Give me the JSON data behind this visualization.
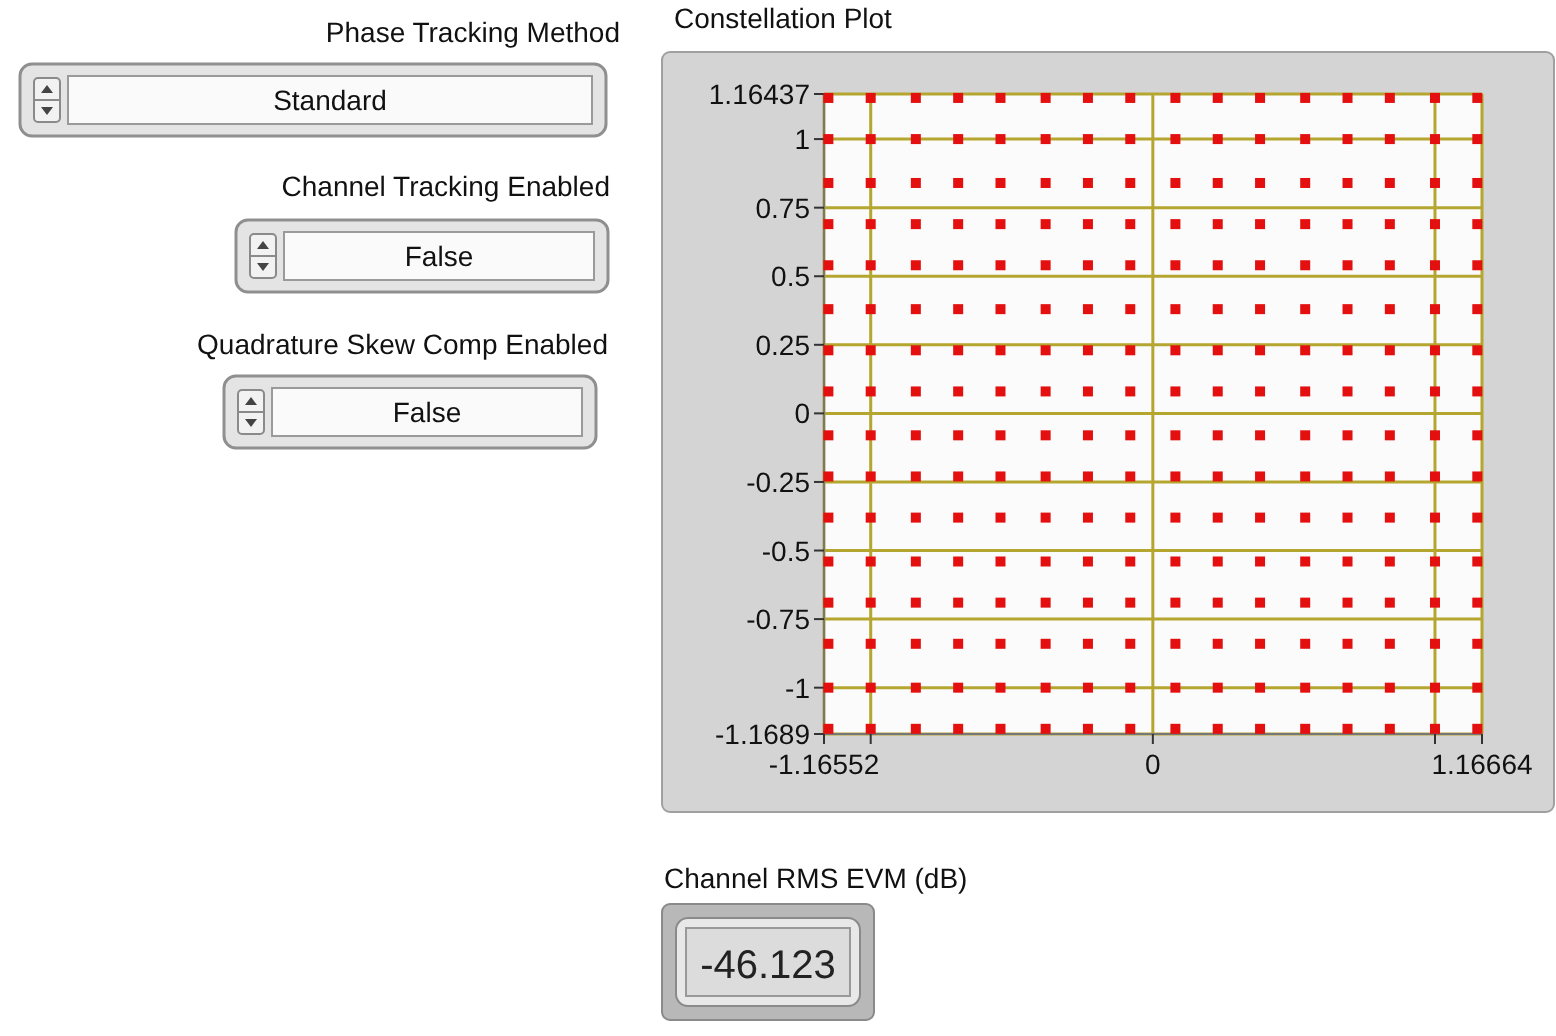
{
  "chart_data": [
    {
      "type": "other",
      "annotations": [
        "Phase Tracking Method",
        "Standard",
        "Channel Tracking Enabled",
        "False",
        "Quadrature Skew Comp Enabled",
        "False"
      ]
    },
    {
      "type": "scatter",
      "title": "Constellation Plot",
      "color": "#e41010",
      "marker": "square",
      "grid": true,
      "xlim": [
        -1.16552,
        1.16664
      ],
      "ylim": [
        -1.1689,
        1.16437
      ],
      "xticks": [
        -1.16552,
        {
          "value": -1,
          "label": null
        },
        0,
        {
          "value": 1,
          "label": null
        },
        1.16664
      ],
      "yticks": [
        -1.1689,
        -1,
        -0.75,
        -0.5,
        -0.25,
        0,
        0.25,
        0.5,
        0.75,
        1,
        1.16437
      ],
      "x": [
        -1.15,
        -1.15,
        -1.15,
        -1.15,
        -1.15,
        -1.15,
        -1.15,
        -1.15,
        -1.15,
        -1.15,
        -1.15,
        -1.15,
        -1.15,
        -1.15,
        -1.15,
        -1.15,
        -1,
        -1,
        -1,
        -1,
        -1,
        -1,
        -1,
        -1,
        -1,
        -1,
        -1,
        -1,
        -1,
        -1,
        -1,
        -1,
        -0.84,
        -0.84,
        -0.84,
        -0.84,
        -0.84,
        -0.84,
        -0.84,
        -0.84,
        -0.84,
        -0.84,
        -0.84,
        -0.84,
        -0.84,
        -0.84,
        -0.84,
        -0.84,
        -0.69,
        -0.69,
        -0.69,
        -0.69,
        -0.69,
        -0.69,
        -0.69,
        -0.69,
        -0.69,
        -0.69,
        -0.69,
        -0.69,
        -0.69,
        -0.69,
        -0.69,
        -0.69,
        -0.54,
        -0.54,
        -0.54,
        -0.54,
        -0.54,
        -0.54,
        -0.54,
        -0.54,
        -0.54,
        -0.54,
        -0.54,
        -0.54,
        -0.54,
        -0.54,
        -0.54,
        -0.54,
        -0.38,
        -0.38,
        -0.38,
        -0.38,
        -0.38,
        -0.38,
        -0.38,
        -0.38,
        -0.38,
        -0.38,
        -0.38,
        -0.38,
        -0.38,
        -0.38,
        -0.38,
        -0.38,
        -0.23,
        -0.23,
        -0.23,
        -0.23,
        -0.23,
        -0.23,
        -0.23,
        -0.23,
        -0.23,
        -0.23,
        -0.23,
        -0.23,
        -0.23,
        -0.23,
        -0.23,
        -0.23,
        -0.08,
        -0.08,
        -0.08,
        -0.08,
        -0.08,
        -0.08,
        -0.08,
        -0.08,
        -0.08,
        -0.08,
        -0.08,
        -0.08,
        -0.08,
        -0.08,
        -0.08,
        -0.08,
        0.08,
        0.08,
        0.08,
        0.08,
        0.08,
        0.08,
        0.08,
        0.08,
        0.08,
        0.08,
        0.08,
        0.08,
        0.08,
        0.08,
        0.08,
        0.08,
        0.23,
        0.23,
        0.23,
        0.23,
        0.23,
        0.23,
        0.23,
        0.23,
        0.23,
        0.23,
        0.23,
        0.23,
        0.23,
        0.23,
        0.23,
        0.23,
        0.38,
        0.38,
        0.38,
        0.38,
        0.38,
        0.38,
        0.38,
        0.38,
        0.38,
        0.38,
        0.38,
        0.38,
        0.38,
        0.38,
        0.38,
        0.38,
        0.54,
        0.54,
        0.54,
        0.54,
        0.54,
        0.54,
        0.54,
        0.54,
        0.54,
        0.54,
        0.54,
        0.54,
        0.54,
        0.54,
        0.54,
        0.54,
        0.69,
        0.69,
        0.69,
        0.69,
        0.69,
        0.69,
        0.69,
        0.69,
        0.69,
        0.69,
        0.69,
        0.69,
        0.69,
        0.69,
        0.69,
        0.69,
        0.84,
        0.84,
        0.84,
        0.84,
        0.84,
        0.84,
        0.84,
        0.84,
        0.84,
        0.84,
        0.84,
        0.84,
        0.84,
        0.84,
        0.84,
        0.84,
        1,
        1,
        1,
        1,
        1,
        1,
        1,
        1,
        1,
        1,
        1,
        1,
        1,
        1,
        1,
        1,
        1.15,
        1.15,
        1.15,
        1.15,
        1.15,
        1.15,
        1.15,
        1.15,
        1.15,
        1.15,
        1.15,
        1.15,
        1.15,
        1.15,
        1.15,
        1.15
      ],
      "values": [
        -1.15,
        -1,
        -0.84,
        -0.69,
        -0.54,
        -0.38,
        -0.23,
        -0.08,
        0.08,
        0.23,
        0.38,
        0.54,
        0.69,
        0.84,
        1,
        1.15,
        -1.15,
        -1,
        -0.84,
        -0.69,
        -0.54,
        -0.38,
        -0.23,
        -0.08,
        0.08,
        0.23,
        0.38,
        0.54,
        0.69,
        0.84,
        1,
        1.15,
        -1.15,
        -1,
        -0.84,
        -0.69,
        -0.54,
        -0.38,
        -0.23,
        -0.08,
        0.08,
        0.23,
        0.38,
        0.54,
        0.69,
        0.84,
        1,
        1.15,
        -1.15,
        -1,
        -0.84,
        -0.69,
        -0.54,
        -0.38,
        -0.23,
        -0.08,
        0.08,
        0.23,
        0.38,
        0.54,
        0.69,
        0.84,
        1,
        1.15,
        -1.15,
        -1,
        -0.84,
        -0.69,
        -0.54,
        -0.38,
        -0.23,
        -0.08,
        0.08,
        0.23,
        0.38,
        0.54,
        0.69,
        0.84,
        1,
        1.15,
        -1.15,
        -1,
        -0.84,
        -0.69,
        -0.54,
        -0.38,
        -0.23,
        -0.08,
        0.08,
        0.23,
        0.38,
        0.54,
        0.69,
        0.84,
        1,
        1.15,
        -1.15,
        -1,
        -0.84,
        -0.69,
        -0.54,
        -0.38,
        -0.23,
        -0.08,
        0.08,
        0.23,
        0.38,
        0.54,
        0.69,
        0.84,
        1,
        1.15,
        -1.15,
        -1,
        -0.84,
        -0.69,
        -0.54,
        -0.38,
        -0.23,
        -0.08,
        0.08,
        0.23,
        0.38,
        0.54,
        0.69,
        0.84,
        1,
        1.15,
        -1.15,
        -1,
        -0.84,
        -0.69,
        -0.54,
        -0.38,
        -0.23,
        -0.08,
        0.08,
        0.23,
        0.38,
        0.54,
        0.69,
        0.84,
        1,
        1.15,
        -1.15,
        -1,
        -0.84,
        -0.69,
        -0.54,
        -0.38,
        -0.23,
        -0.08,
        0.08,
        0.23,
        0.38,
        0.54,
        0.69,
        0.84,
        1,
        1.15,
        -1.15,
        -1,
        -0.84,
        -0.69,
        -0.54,
        -0.38,
        -0.23,
        -0.08,
        0.08,
        0.23,
        0.38,
        0.54,
        0.69,
        0.84,
        1,
        1.15,
        -1.15,
        -1,
        -0.84,
        -0.69,
        -0.54,
        -0.38,
        -0.23,
        -0.08,
        0.08,
        0.23,
        0.38,
        0.54,
        0.69,
        0.84,
        1,
        1.15,
        -1.15,
        -1,
        -0.84,
        -0.69,
        -0.54,
        -0.38,
        -0.23,
        -0.08,
        0.08,
        0.23,
        0.38,
        0.54,
        0.69,
        0.84,
        1,
        1.15,
        -1.15,
        -1,
        -0.84,
        -0.69,
        -0.54,
        -0.38,
        -0.23,
        -0.08,
        0.08,
        0.23,
        0.38,
        0.54,
        0.69,
        0.84,
        1,
        1.15,
        -1.15,
        -1,
        -0.84,
        -0.69,
        -0.54,
        -0.38,
        -0.23,
        -0.08,
        0.08,
        0.23,
        0.38,
        0.54,
        0.69,
        0.84,
        1,
        1.15,
        -1.15,
        -1,
        -0.84,
        -0.69,
        -0.54,
        -0.38,
        -0.23,
        -0.08,
        0.08,
        0.23,
        0.38,
        0.54,
        0.69,
        0.84,
        1,
        1.15
      ]
    },
    {
      "type": "other",
      "annotations": [
        "Channel RMS EVM (dB)",
        "-46.123"
      ]
    }
  ]
}
